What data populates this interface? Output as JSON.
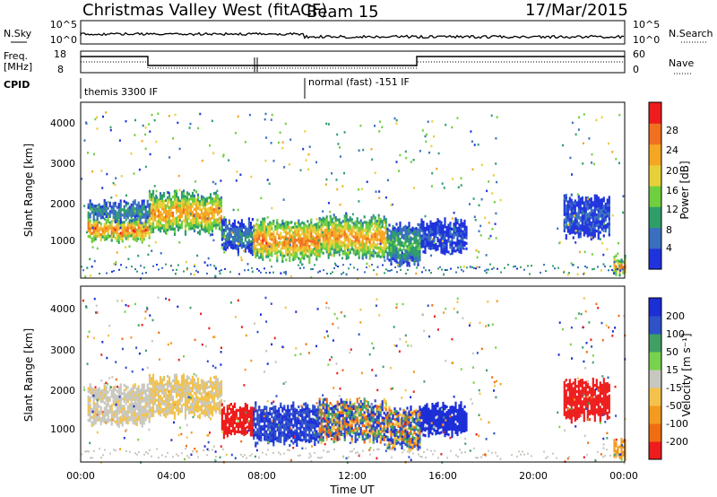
{
  "header": {
    "title": "Christmas Valley West (fitACF)",
    "beam": "Beam 15",
    "date": "17/Mar/2015"
  },
  "strip": {
    "nsky_label": "N.Sky",
    "nsearch_label": "N.Search",
    "nsky_ticks": [
      "10^5",
      "10^0"
    ],
    "freq_label": "Freq.",
    "freq_unit": "[MHz]",
    "freq_ticks": [
      "18",
      "8"
    ],
    "nave_label": "Nave",
    "nave_ticks": [
      "60",
      "0"
    ],
    "cpid_label": "CPID",
    "cpid_1": "themis 3300 IF",
    "cpid_2": "normal (fast) -151 IF"
  },
  "xaxis": {
    "label": "Time UT",
    "ticks": [
      "00:00",
      "04:00",
      "08:00",
      "12:00",
      "16:00",
      "20:00",
      "00:00"
    ]
  },
  "panels": [
    {
      "ylabel": "Slant Range [km]",
      "yticks": [
        "1000",
        "2000",
        "3000",
        "4000"
      ],
      "cbar_label": "Power [dB]",
      "cbar_ticks": [
        "4",
        "8",
        "12",
        "16",
        "20",
        "24",
        "28"
      ],
      "cbar_colors": [
        "#1f33dd",
        "#3a6fc0",
        "#2f9e6a",
        "#6fcf3e",
        "#e8d03a",
        "#f5a623",
        "#f07020",
        "#ee1c1c"
      ]
    },
    {
      "ylabel": "Slant Range [km]",
      "yticks": [
        "1000",
        "2000",
        "3000",
        "4000"
      ],
      "cbar_label": "Velocity [m s⁻¹]",
      "cbar_ticks": [
        "200",
        "100",
        "50",
        "15",
        "-15",
        "-50",
        "-100",
        "-200"
      ],
      "cbar_colors": [
        "#1c2ed6",
        "#2f52c8",
        "#3f9f64",
        "#79d24d",
        "#c8c8c0",
        "#f3c24b",
        "#f39b1e",
        "#f06d10",
        "#ee1c1c"
      ]
    }
  ],
  "chart_data": {
    "type": "heatmap",
    "x_unit": "UT hours",
    "x_range": [
      0,
      24
    ],
    "y_range_km": [
      180,
      4600
    ],
    "power_blobs": [
      {
        "t0": 0.3,
        "t1": 3.0,
        "r0": 1150,
        "r1": 1700,
        "level": 28
      },
      {
        "t0": 3.0,
        "t1": 6.2,
        "r0": 1400,
        "r1": 2300,
        "level": 26
      },
      {
        "t0": 0.3,
        "t1": 3.0,
        "r0": 1700,
        "r1": 2100,
        "level": 12
      },
      {
        "t0": 6.2,
        "t1": 7.6,
        "r0": 900,
        "r1": 1600,
        "level": 10
      },
      {
        "t0": 7.6,
        "t1": 10.5,
        "r0": 700,
        "r1": 1600,
        "level": 28
      },
      {
        "t0": 10.5,
        "t1": 13.5,
        "r0": 800,
        "r1": 1700,
        "level": 26
      },
      {
        "t0": 13.5,
        "t1": 15.0,
        "r0": 600,
        "r1": 1500,
        "level": 14
      },
      {
        "t0": 15.0,
        "t1": 17.0,
        "r0": 900,
        "r1": 1600,
        "level": 6
      },
      {
        "t0": 21.3,
        "t1": 23.3,
        "r0": 1300,
        "r1": 2200,
        "level": 7
      },
      {
        "t0": 23.5,
        "t1": 24.0,
        "r0": 300,
        "r1": 700,
        "level": 28
      }
    ]
  }
}
